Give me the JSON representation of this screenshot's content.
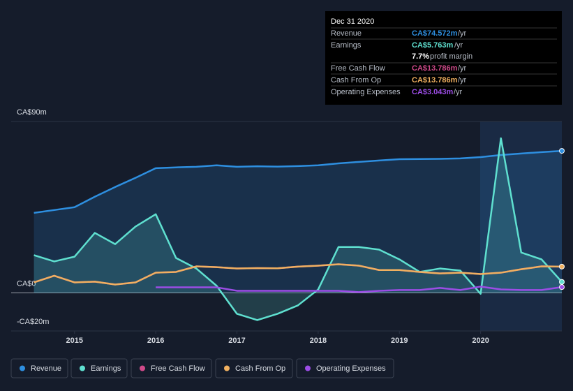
{
  "chart_data": {
    "type": "line",
    "tooltip": {
      "title": "Dec 31 2020",
      "rows": [
        {
          "label": "Revenue",
          "value": "CA$74.572m",
          "unit": "/yr"
        },
        {
          "label": "Earnings",
          "value": "CA$5.763m",
          "unit": "/yr"
        },
        {
          "value": "7.7%",
          "unit": "profit margin"
        },
        {
          "label": "Free Cash Flow",
          "value": "CA$13.786m",
          "unit": "/yr"
        },
        {
          "label": "Cash From Op",
          "value": "CA$13.786m",
          "unit": "/yr"
        },
        {
          "label": "Operating Expenses",
          "value": "CA$3.043m",
          "unit": "/yr"
        }
      ]
    },
    "x": [
      2014.5,
      2014.75,
      2015,
      2015.25,
      2015.5,
      2015.75,
      2016,
      2016.25,
      2016.5,
      2016.75,
      2017,
      2017.25,
      2017.5,
      2017.75,
      2018,
      2018.25,
      2018.5,
      2018.75,
      2019,
      2019.25,
      2019.5,
      2019.75,
      2020,
      2020.25,
      2020.5,
      2020.75,
      2021
    ],
    "series": [
      {
        "name": "Revenue",
        "color": "#2e8fe0",
        "area": true,
        "values": [
          42,
          43.5,
          45,
          50.5,
          55.6,
          60.4,
          65.5,
          65.9,
          66.2,
          67,
          66.2,
          66.5,
          66.3,
          66.6,
          67,
          68,
          68.8,
          69.5,
          70.2,
          70.3,
          70.4,
          70.6,
          71.3,
          72.4,
          73.2,
          73.9,
          74.572
        ]
      },
      {
        "name": "Earnings",
        "color": "#5fe0d0",
        "area": true,
        "values": [
          19.8,
          16.5,
          19,
          31.5,
          25.6,
          34.8,
          41.3,
          18.3,
          12.8,
          3.7,
          -11,
          -14.3,
          -11,
          -6.6,
          1.8,
          24.1,
          24.1,
          22.7,
          17.6,
          11,
          12.8,
          11.7,
          -0.5,
          81.2,
          21.2,
          17.6,
          5.763
        ]
      },
      {
        "name": "Free Cash Flow",
        "color": "#d04a8a",
        "area": false,
        "values": [
          5.5,
          9,
          5.5,
          5.9,
          4.4,
          5.5,
          10.6,
          11,
          13.9,
          13.5,
          12.8,
          13,
          12.9,
          13.8,
          14.3,
          15,
          14.3,
          12,
          12,
          11,
          10.2,
          10.6,
          9.9,
          10.6,
          12.4,
          13.9,
          13.786
        ]
      },
      {
        "name": "Cash From Op",
        "color": "#f0b060",
        "area": false,
        "values": [
          5.5,
          9,
          5.5,
          5.9,
          4.4,
          5.5,
          10.6,
          11,
          13.9,
          13.5,
          12.8,
          13,
          12.9,
          13.8,
          14.3,
          15,
          14.3,
          12,
          12,
          11,
          10.2,
          10.6,
          9.9,
          10.6,
          12.4,
          13.9,
          13.786
        ]
      },
      {
        "name": "Operating Expenses",
        "color": "#9c4de6",
        "area": false,
        "values": [
          null,
          null,
          null,
          null,
          null,
          null,
          2.9,
          2.9,
          2.9,
          2.9,
          1.1,
          1.1,
          1.1,
          1.1,
          1.1,
          1.1,
          0.4,
          1.1,
          1.5,
          1.5,
          2.6,
          1.5,
          3.3,
          1.8,
          1.5,
          1.5,
          3.043
        ]
      }
    ],
    "xlim": [
      2014.22,
      2021
    ],
    "xticks": [
      2015,
      2016,
      2017,
      2018,
      2019,
      2020
    ],
    "ylim": [
      -20,
      90
    ],
    "yticks": [
      {
        "value": -20,
        "label": "-CA$20m"
      },
      {
        "value": 0,
        "label": "CA$0"
      },
      {
        "value": 90,
        "label": "CA$90m"
      }
    ]
  }
}
